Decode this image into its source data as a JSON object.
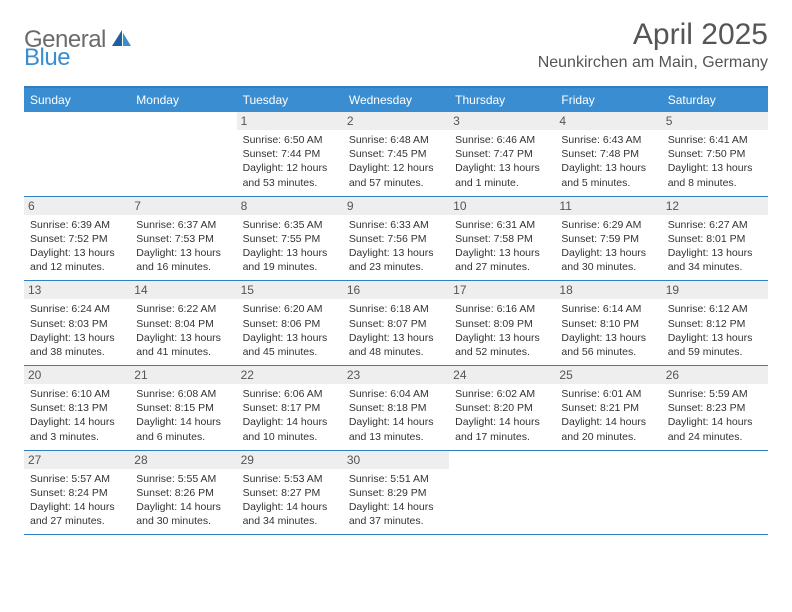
{
  "header": {
    "logo_general": "General",
    "logo_blue": "Blue",
    "month_title": "April 2025",
    "location": "Neunkirchen am Main, Germany"
  },
  "colors": {
    "header_bg": "#3a8dd0",
    "border": "#2f7fc2",
    "daynum_bg": "#eeeeee",
    "text_dark": "#333333",
    "text_mid": "#555555",
    "white": "#ffffff"
  },
  "days_of_week": [
    "Sunday",
    "Monday",
    "Tuesday",
    "Wednesday",
    "Thursday",
    "Friday",
    "Saturday"
  ],
  "weeks": [
    [
      null,
      null,
      {
        "n": "1",
        "sr": "Sunrise: 6:50 AM",
        "ss": "Sunset: 7:44 PM",
        "dl1": "Daylight: 12 hours",
        "dl2": "and 53 minutes."
      },
      {
        "n": "2",
        "sr": "Sunrise: 6:48 AM",
        "ss": "Sunset: 7:45 PM",
        "dl1": "Daylight: 12 hours",
        "dl2": "and 57 minutes."
      },
      {
        "n": "3",
        "sr": "Sunrise: 6:46 AM",
        "ss": "Sunset: 7:47 PM",
        "dl1": "Daylight: 13 hours",
        "dl2": "and 1 minute."
      },
      {
        "n": "4",
        "sr": "Sunrise: 6:43 AM",
        "ss": "Sunset: 7:48 PM",
        "dl1": "Daylight: 13 hours",
        "dl2": "and 5 minutes."
      },
      {
        "n": "5",
        "sr": "Sunrise: 6:41 AM",
        "ss": "Sunset: 7:50 PM",
        "dl1": "Daylight: 13 hours",
        "dl2": "and 8 minutes."
      }
    ],
    [
      {
        "n": "6",
        "sr": "Sunrise: 6:39 AM",
        "ss": "Sunset: 7:52 PM",
        "dl1": "Daylight: 13 hours",
        "dl2": "and 12 minutes."
      },
      {
        "n": "7",
        "sr": "Sunrise: 6:37 AM",
        "ss": "Sunset: 7:53 PM",
        "dl1": "Daylight: 13 hours",
        "dl2": "and 16 minutes."
      },
      {
        "n": "8",
        "sr": "Sunrise: 6:35 AM",
        "ss": "Sunset: 7:55 PM",
        "dl1": "Daylight: 13 hours",
        "dl2": "and 19 minutes."
      },
      {
        "n": "9",
        "sr": "Sunrise: 6:33 AM",
        "ss": "Sunset: 7:56 PM",
        "dl1": "Daylight: 13 hours",
        "dl2": "and 23 minutes."
      },
      {
        "n": "10",
        "sr": "Sunrise: 6:31 AM",
        "ss": "Sunset: 7:58 PM",
        "dl1": "Daylight: 13 hours",
        "dl2": "and 27 minutes."
      },
      {
        "n": "11",
        "sr": "Sunrise: 6:29 AM",
        "ss": "Sunset: 7:59 PM",
        "dl1": "Daylight: 13 hours",
        "dl2": "and 30 minutes."
      },
      {
        "n": "12",
        "sr": "Sunrise: 6:27 AM",
        "ss": "Sunset: 8:01 PM",
        "dl1": "Daylight: 13 hours",
        "dl2": "and 34 minutes."
      }
    ],
    [
      {
        "n": "13",
        "sr": "Sunrise: 6:24 AM",
        "ss": "Sunset: 8:03 PM",
        "dl1": "Daylight: 13 hours",
        "dl2": "and 38 minutes."
      },
      {
        "n": "14",
        "sr": "Sunrise: 6:22 AM",
        "ss": "Sunset: 8:04 PM",
        "dl1": "Daylight: 13 hours",
        "dl2": "and 41 minutes."
      },
      {
        "n": "15",
        "sr": "Sunrise: 6:20 AM",
        "ss": "Sunset: 8:06 PM",
        "dl1": "Daylight: 13 hours",
        "dl2": "and 45 minutes."
      },
      {
        "n": "16",
        "sr": "Sunrise: 6:18 AM",
        "ss": "Sunset: 8:07 PM",
        "dl1": "Daylight: 13 hours",
        "dl2": "and 48 minutes."
      },
      {
        "n": "17",
        "sr": "Sunrise: 6:16 AM",
        "ss": "Sunset: 8:09 PM",
        "dl1": "Daylight: 13 hours",
        "dl2": "and 52 minutes."
      },
      {
        "n": "18",
        "sr": "Sunrise: 6:14 AM",
        "ss": "Sunset: 8:10 PM",
        "dl1": "Daylight: 13 hours",
        "dl2": "and 56 minutes."
      },
      {
        "n": "19",
        "sr": "Sunrise: 6:12 AM",
        "ss": "Sunset: 8:12 PM",
        "dl1": "Daylight: 13 hours",
        "dl2": "and 59 minutes."
      }
    ],
    [
      {
        "n": "20",
        "sr": "Sunrise: 6:10 AM",
        "ss": "Sunset: 8:13 PM",
        "dl1": "Daylight: 14 hours",
        "dl2": "and 3 minutes."
      },
      {
        "n": "21",
        "sr": "Sunrise: 6:08 AM",
        "ss": "Sunset: 8:15 PM",
        "dl1": "Daylight: 14 hours",
        "dl2": "and 6 minutes."
      },
      {
        "n": "22",
        "sr": "Sunrise: 6:06 AM",
        "ss": "Sunset: 8:17 PM",
        "dl1": "Daylight: 14 hours",
        "dl2": "and 10 minutes."
      },
      {
        "n": "23",
        "sr": "Sunrise: 6:04 AM",
        "ss": "Sunset: 8:18 PM",
        "dl1": "Daylight: 14 hours",
        "dl2": "and 13 minutes."
      },
      {
        "n": "24",
        "sr": "Sunrise: 6:02 AM",
        "ss": "Sunset: 8:20 PM",
        "dl1": "Daylight: 14 hours",
        "dl2": "and 17 minutes."
      },
      {
        "n": "25",
        "sr": "Sunrise: 6:01 AM",
        "ss": "Sunset: 8:21 PM",
        "dl1": "Daylight: 14 hours",
        "dl2": "and 20 minutes."
      },
      {
        "n": "26",
        "sr": "Sunrise: 5:59 AM",
        "ss": "Sunset: 8:23 PM",
        "dl1": "Daylight: 14 hours",
        "dl2": "and 24 minutes."
      }
    ],
    [
      {
        "n": "27",
        "sr": "Sunrise: 5:57 AM",
        "ss": "Sunset: 8:24 PM",
        "dl1": "Daylight: 14 hours",
        "dl2": "and 27 minutes."
      },
      {
        "n": "28",
        "sr": "Sunrise: 5:55 AM",
        "ss": "Sunset: 8:26 PM",
        "dl1": "Daylight: 14 hours",
        "dl2": "and 30 minutes."
      },
      {
        "n": "29",
        "sr": "Sunrise: 5:53 AM",
        "ss": "Sunset: 8:27 PM",
        "dl1": "Daylight: 14 hours",
        "dl2": "and 34 minutes."
      },
      {
        "n": "30",
        "sr": "Sunrise: 5:51 AM",
        "ss": "Sunset: 8:29 PM",
        "dl1": "Daylight: 14 hours",
        "dl2": "and 37 minutes."
      },
      null,
      null,
      null
    ]
  ]
}
